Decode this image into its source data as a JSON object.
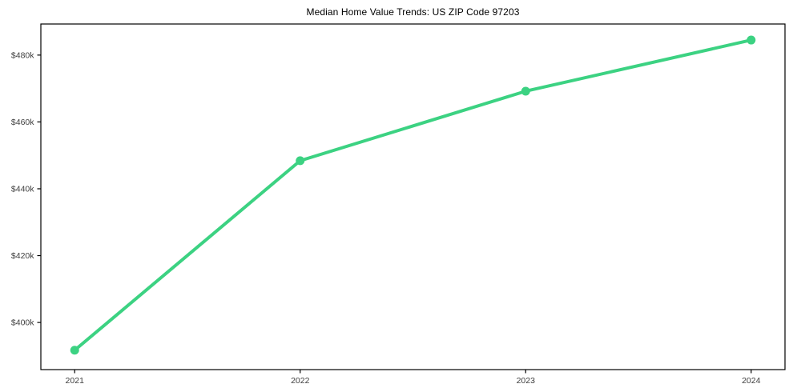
{
  "chart_data": {
    "type": "line",
    "title": "Median Home Value Trends: US ZIP Code 97203",
    "x": [
      2021,
      2022,
      2023,
      2024
    ],
    "series": [
      {
        "name": "Median home value",
        "values": [
          391700,
          448400,
          469200,
          484500
        ]
      }
    ],
    "xtick_labels": [
      "2021",
      "2022",
      "2023",
      "2024"
    ],
    "ytick_values": [
      400000,
      420000,
      440000,
      460000,
      480000
    ],
    "ytick_labels": [
      "$400k",
      "$420k",
      "$440k",
      "$460k",
      "$480k"
    ],
    "xlim": [
      2020.85,
      2024.15
    ],
    "ylim": [
      385900,
      489300
    ],
    "xlabel": "",
    "ylabel": "",
    "grid": false,
    "legend": "none",
    "line_color": "#3cd282",
    "marker": "circle",
    "axis_color": "#000000",
    "tick_label_color": "#3d3d3d",
    "background_color": "#ffffff"
  }
}
